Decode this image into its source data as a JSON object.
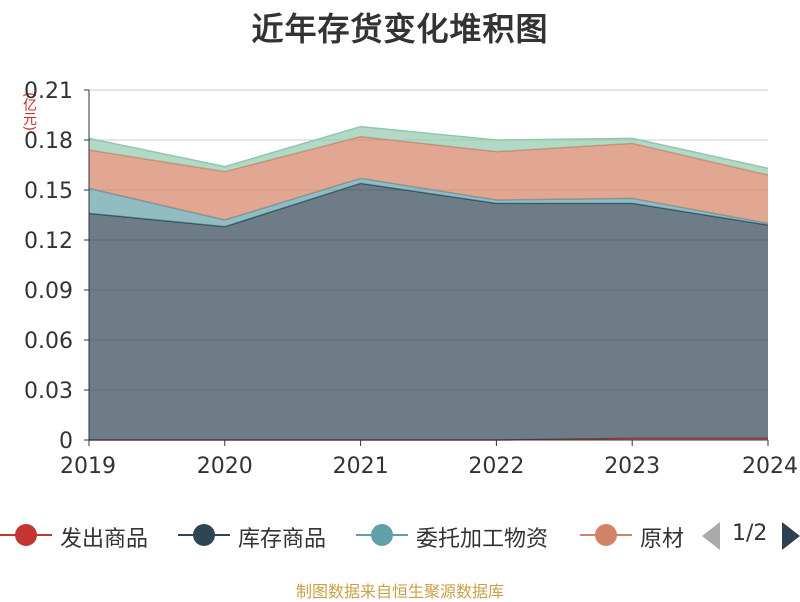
{
  "title": "近年存货变化堆积图",
  "unit": "(亿元)",
  "source": "制图数据来自恒生聚源数据库",
  "legend": {
    "items": [
      {
        "label": "发出商品",
        "color": "#c23531"
      },
      {
        "label": "库存商品",
        "color": "#2f4554"
      },
      {
        "label": "委托加工物资",
        "color": "#61a0a8"
      },
      {
        "label": "原材",
        "color": "#d48265"
      }
    ],
    "pager": "1/2"
  },
  "chart_data": {
    "type": "area",
    "stacked": true,
    "x": [
      "2019",
      "2020",
      "2021",
      "2022",
      "2023",
      "2024"
    ],
    "ylim": [
      0,
      0.21
    ],
    "yticks": [
      "0",
      "0.03",
      "0.06",
      "0.09",
      "0.12",
      "0.15",
      "0.18",
      "0.21"
    ],
    "ylabel": "(亿元)",
    "series": [
      {
        "name": "发出商品",
        "color": "#c23531",
        "values": [
          0,
          0,
          0,
          0,
          0.001,
          0.001
        ]
      },
      {
        "name": "库存商品",
        "color": "#2f4554",
        "values": [
          0.136,
          0.128,
          0.154,
          0.142,
          0.141,
          0.128
        ]
      },
      {
        "name": "委托加工物资",
        "color": "#61a0a8",
        "values": [
          0.015,
          0.004,
          0.003,
          0.002,
          0.003,
          0.001
        ]
      },
      {
        "name": "原材",
        "color": "#d48265",
        "values": [
          0.023,
          0.029,
          0.025,
          0.029,
          0.033,
          0.029
        ]
      },
      {
        "name": "",
        "color": "#91c7ae",
        "values": [
          0.007,
          0.003,
          0.006,
          0.007,
          0.003,
          0.004
        ]
      }
    ]
  }
}
